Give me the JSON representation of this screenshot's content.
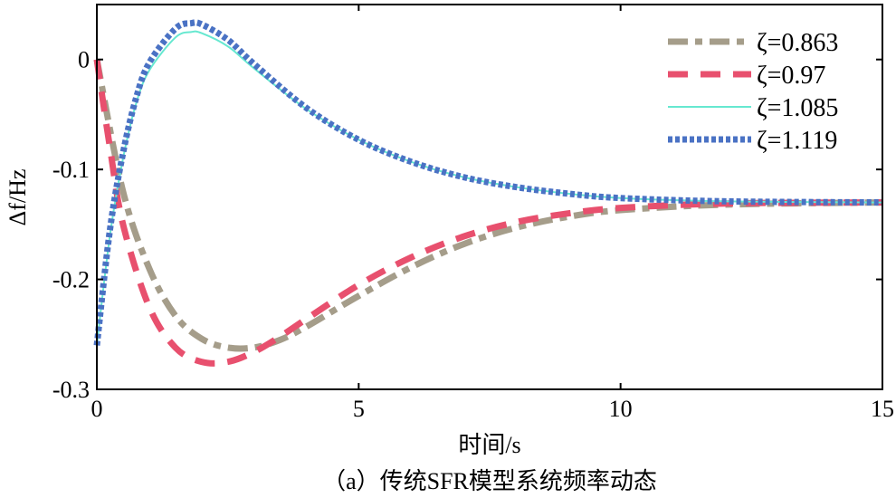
{
  "chart_data": {
    "type": "line",
    "title": "",
    "caption": "（a）传统SFR模型系统频率动态",
    "xlabel": "时间/s",
    "ylabel": "Δf/Hz",
    "xlim": [
      0,
      15
    ],
    "ylim": [
      -0.3,
      0.05
    ],
    "xticks": [
      0,
      5,
      10,
      15
    ],
    "yticks": [
      0,
      -0.1,
      -0.2,
      -0.3
    ],
    "ytick_labels": [
      "0",
      "-0.1",
      "-0.2",
      "-0.3"
    ],
    "grid": false,
    "legend_position": "top-right",
    "series": [
      {
        "name": "ζ=0.863",
        "color": "#a59d8a",
        "style": "dashdot",
        "x": [
          0,
          0.5,
          1,
          1.5,
          2,
          2.5,
          3,
          3.5,
          4,
          5,
          6,
          7,
          8,
          9,
          10,
          12,
          15
        ],
        "y": [
          0,
          -0.12,
          -0.19,
          -0.233,
          -0.254,
          -0.262,
          -0.262,
          -0.255,
          -0.243,
          -0.215,
          -0.189,
          -0.168,
          -0.153,
          -0.143,
          -0.137,
          -0.132,
          -0.13
        ]
      },
      {
        "name": "ζ=0.97",
        "color": "#e8506e",
        "style": "dashed",
        "x": [
          0,
          0.25,
          0.5,
          1,
          1.5,
          2,
          2.5,
          3,
          3.5,
          4,
          5,
          6,
          7,
          8,
          9,
          10,
          12,
          15
        ],
        "y": [
          0,
          -0.08,
          -0.15,
          -0.225,
          -0.262,
          -0.275,
          -0.275,
          -0.266,
          -0.252,
          -0.236,
          -0.205,
          -0.18,
          -0.161,
          -0.148,
          -0.14,
          -0.135,
          -0.131,
          -0.13
        ]
      },
      {
        "name": "ζ=1.085",
        "color": "#66e8d0",
        "style": "solid",
        "x": [
          0,
          0.25,
          0.5,
          0.75,
          1,
          1.5,
          1.8,
          2,
          2.5,
          3,
          4,
          5,
          6,
          7,
          8,
          9,
          10,
          12,
          15
        ],
        "y": [
          -0.26,
          -0.16,
          -0.09,
          -0.04,
          -0.01,
          0.02,
          0.025,
          0.024,
          0.012,
          -0.008,
          -0.045,
          -0.073,
          -0.093,
          -0.107,
          -0.116,
          -0.122,
          -0.126,
          -0.129,
          -0.13
        ]
      },
      {
        "name": "ζ=1.119",
        "color": "#4a72c4",
        "style": "dotted",
        "x": [
          0,
          0.25,
          0.5,
          0.75,
          1,
          1.5,
          1.8,
          2,
          2.5,
          3,
          4,
          5,
          6,
          7,
          8,
          9,
          10,
          12,
          15
        ],
        "y": [
          -0.26,
          -0.155,
          -0.085,
          -0.035,
          -0.003,
          0.028,
          0.033,
          0.032,
          0.018,
          -0.004,
          -0.044,
          -0.073,
          -0.093,
          -0.107,
          -0.116,
          -0.122,
          -0.126,
          -0.129,
          -0.13
        ]
      }
    ]
  }
}
